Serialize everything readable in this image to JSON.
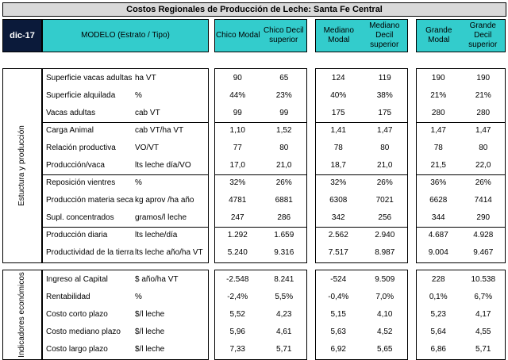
{
  "title": "Costos Regionales de Producción de Leche: Santa Fe Central",
  "header": {
    "period": "dic-17",
    "model": "MODELO (Estrato / Tipo)",
    "columns": [
      "Chico Modal",
      "Chico Decil superior",
      "Mediano Modal",
      "Mediano Decil superior",
      "Grande Modal",
      "Grande Decil superior"
    ]
  },
  "section1": {
    "label": "Estuctura y producción",
    "rows": [
      {
        "name": "Superficie vacas adultas",
        "unit": "ha VT",
        "values": [
          "90",
          "65",
          "124",
          "119",
          "190",
          "190"
        ]
      },
      {
        "name": "Superficie alquilada",
        "unit": "%",
        "values": [
          "44%",
          "23%",
          "40%",
          "38%",
          "21%",
          "21%"
        ]
      },
      {
        "name": "Vacas adultas",
        "unit": "cab VT",
        "values": [
          "99",
          "99",
          "175",
          "175",
          "280",
          "280"
        ]
      },
      {
        "name": "Carga Animal",
        "unit": "cab VT/ha VT",
        "values": [
          "1,10",
          "1,52",
          "1,41",
          "1,47",
          "1,47",
          "1,47"
        ]
      },
      {
        "name": "Relación productiva",
        "unit": "VO/VT",
        "values": [
          "77",
          "80",
          "78",
          "80",
          "78",
          "80"
        ]
      },
      {
        "name": "Producción/vaca",
        "unit": "lts leche día/VO",
        "values": [
          "17,0",
          "21,0",
          "18,7",
          "21,0",
          "21,5",
          "22,0"
        ]
      },
      {
        "name": "Reposición vientres",
        "unit": "%",
        "values": [
          "32%",
          "26%",
          "32%",
          "26%",
          "36%",
          "26%"
        ]
      },
      {
        "name": "Producción materia seca",
        "unit": "kg aprov /ha año",
        "values": [
          "4781",
          "6881",
          "6308",
          "7021",
          "6628",
          "7414"
        ]
      },
      {
        "name": "Supl. concentrados",
        "unit": "gramos/l leche",
        "values": [
          "247",
          "286",
          "342",
          "256",
          "344",
          "290"
        ]
      },
      {
        "name": "Producción diaria",
        "unit": "lts leche/día",
        "values": [
          "1.292",
          "1.659",
          "2.562",
          "2.940",
          "4.687",
          "4.928"
        ]
      },
      {
        "name": "Productividad de la tierra",
        "unit": "lts leche año/ha VT",
        "values": [
          "5.240",
          "9.316",
          "7.517",
          "8.987",
          "9.004",
          "9.467"
        ]
      }
    ]
  },
  "section2": {
    "label": "Indicadores económicos",
    "rows": [
      {
        "name": "Ingreso al Capital",
        "unit": "$ año/ha VT",
        "values": [
          "-2.548",
          "8.241",
          "-524",
          "9.509",
          "228",
          "10.538"
        ]
      },
      {
        "name": "Rentabilidad",
        "unit": "%",
        "values": [
          "-2,4%",
          "5,5%",
          "-0,4%",
          "7,0%",
          "0,1%",
          "6,7%"
        ]
      },
      {
        "name": "Costo corto plazo",
        "unit": "$/l leche",
        "values": [
          "5,52",
          "4,23",
          "5,15",
          "4,10",
          "5,23",
          "4,17"
        ]
      },
      {
        "name": "Costo mediano plazo",
        "unit": "$/l leche",
        "values": [
          "5,96",
          "4,61",
          "5,63",
          "4,52",
          "5,64",
          "4,55"
        ]
      },
      {
        "name": "Costo largo plazo",
        "unit": "$/l leche",
        "values": [
          "7,33",
          "5,71",
          "6,92",
          "5,65",
          "6,86",
          "5,71"
        ]
      }
    ]
  }
}
